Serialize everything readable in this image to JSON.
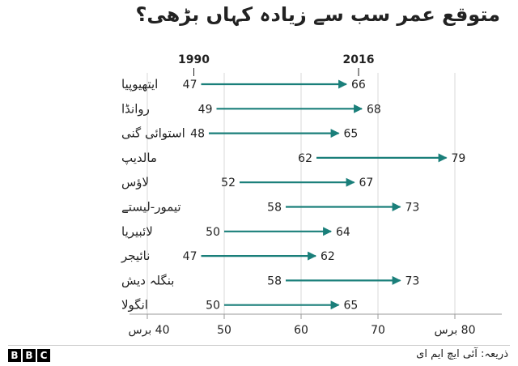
{
  "title": "متوقع عمر سب سے زیادہ کہاں بڑھی؟",
  "source": "ذریعہ: آئی ایچ ایم ای",
  "logo": [
    "B",
    "B",
    "C"
  ],
  "colors": {
    "arrow": "#1a7f7a",
    "text": "#222222",
    "grid": "#d9d9d9",
    "axis": "#999999"
  },
  "chart_data": {
    "type": "arrow-dumbbell",
    "start_label": "1990",
    "end_label": "2016",
    "categories": [
      "ایتھیوپیا",
      "روانڈا",
      "استوائی گنی",
      "مالدیپ",
      "لاؤس",
      "تیمور-لیستے",
      "لائبیریا",
      "نائیجر",
      "بنگلہ دیش",
      "انگولا"
    ],
    "series": [
      {
        "name": "1990",
        "values": [
          47,
          49,
          48,
          62,
          52,
          58,
          50,
          47,
          58,
          50
        ]
      },
      {
        "name": "2016",
        "values": [
          66,
          68,
          65,
          79,
          67,
          73,
          64,
          62,
          73,
          65
        ]
      }
    ],
    "xlim": [
      40,
      80
    ],
    "x_ticks": [
      "40 برس",
      "50",
      "60",
      "70",
      "80 برس"
    ],
    "grid": true
  }
}
